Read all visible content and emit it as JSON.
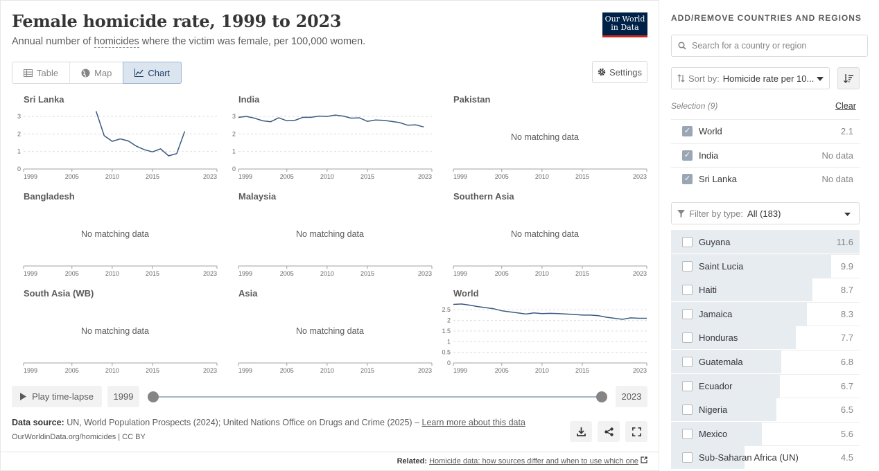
{
  "header": {
    "title": "Female homicide rate, 1999 to 2023",
    "subtitle_pre": "Annual number of ",
    "subtitle_link": "homicides",
    "subtitle_post": " where the victim was female, per 100,000 women.",
    "logo_line1": "Our World",
    "logo_line2": "in Data"
  },
  "tabs": [
    {
      "label": "Table",
      "icon": "table-icon"
    },
    {
      "label": "Map",
      "icon": "globe-icon"
    },
    {
      "label": "Chart",
      "icon": "line-chart-icon",
      "active": true
    }
  ],
  "settings_label": "Settings",
  "no_data_text": "No matching data",
  "chart_data": {
    "type": "line",
    "facets": [
      {
        "name": "Sri Lanka",
        "has_data": true,
        "yticks": [
          0,
          1,
          2,
          3
        ],
        "ylim": [
          0,
          3.4
        ],
        "points": [
          [
            2008,
            3.3
          ],
          [
            2009,
            1.9
          ],
          [
            2010,
            1.58
          ],
          [
            2011,
            1.72
          ],
          [
            2012,
            1.6
          ],
          [
            2013,
            1.3
          ],
          [
            2014,
            1.1
          ],
          [
            2015,
            0.98
          ],
          [
            2016,
            1.15
          ],
          [
            2017,
            0.75
          ],
          [
            2018,
            0.88
          ],
          [
            2019,
            2.15
          ]
        ]
      },
      {
        "name": "India",
        "has_data": true,
        "yticks": [
          0,
          1,
          2,
          3
        ],
        "ylim": [
          0,
          3.4
        ],
        "points": [
          [
            1999,
            2.95
          ],
          [
            2000,
            3.0
          ],
          [
            2001,
            2.9
          ],
          [
            2002,
            2.75
          ],
          [
            2003,
            2.7
          ],
          [
            2004,
            2.92
          ],
          [
            2005,
            2.75
          ],
          [
            2006,
            2.78
          ],
          [
            2007,
            2.95
          ],
          [
            2008,
            2.95
          ],
          [
            2009,
            3.02
          ],
          [
            2010,
            3.0
          ],
          [
            2011,
            3.08
          ],
          [
            2012,
            3.02
          ],
          [
            2013,
            2.9
          ],
          [
            2014,
            2.92
          ],
          [
            2015,
            2.72
          ],
          [
            2016,
            2.8
          ],
          [
            2017,
            2.78
          ],
          [
            2018,
            2.72
          ],
          [
            2019,
            2.65
          ],
          [
            2020,
            2.5
          ],
          [
            2021,
            2.52
          ],
          [
            2022,
            2.4
          ]
        ]
      },
      {
        "name": "Pakistan",
        "has_data": false
      },
      {
        "name": "Bangladesh",
        "has_data": false
      },
      {
        "name": "Malaysia",
        "has_data": false
      },
      {
        "name": "Southern Asia",
        "has_data": false
      },
      {
        "name": "South Asia (WB)",
        "has_data": false
      },
      {
        "name": "Asia",
        "has_data": false
      },
      {
        "name": "World",
        "has_data": true,
        "yticks": [
          0,
          0.5,
          1,
          1.5,
          2,
          2.5
        ],
        "ylim": [
          0,
          2.8
        ],
        "points": [
          [
            1999,
            2.75
          ],
          [
            2000,
            2.77
          ],
          [
            2001,
            2.72
          ],
          [
            2002,
            2.65
          ],
          [
            2003,
            2.6
          ],
          [
            2004,
            2.55
          ],
          [
            2005,
            2.45
          ],
          [
            2006,
            2.4
          ],
          [
            2007,
            2.35
          ],
          [
            2008,
            2.3
          ],
          [
            2009,
            2.35
          ],
          [
            2010,
            2.32
          ],
          [
            2011,
            2.33
          ],
          [
            2012,
            2.32
          ],
          [
            2013,
            2.3
          ],
          [
            2014,
            2.28
          ],
          [
            2015,
            2.25
          ],
          [
            2016,
            2.25
          ],
          [
            2017,
            2.22
          ],
          [
            2018,
            2.15
          ],
          [
            2019,
            2.1
          ],
          [
            2020,
            2.05
          ],
          [
            2021,
            2.12
          ],
          [
            2022,
            2.1
          ],
          [
            2023,
            2.1
          ]
        ]
      }
    ],
    "x_ticks": [
      1999,
      2005,
      2010,
      2015,
      2023
    ],
    "xlim": [
      1999,
      2023
    ],
    "line_color": "#3a5a80"
  },
  "timeline": {
    "play_label": "Play time-lapse",
    "start_year": "1999",
    "end_year": "2023"
  },
  "footer": {
    "source_label": "Data source:",
    "source_text": " UN, World Population Prospects (2024); United Nations Office on Drugs and Crime (2025) – ",
    "learn_more": "Learn more about this data",
    "credit": "OurWorldinData.org/homicides | CC BY",
    "related_label": "Related:",
    "related_link": "Homicide data: how sources differ and when to use which one"
  },
  "sidebar": {
    "title": "ADD/REMOVE COUNTRIES AND REGIONS",
    "search_placeholder": "Search for a country or region",
    "sort_label": "Sort by:",
    "sort_value": "Homicide rate per 10...",
    "selection_label": "Selection (9)",
    "clear_label": "Clear",
    "selected": [
      {
        "name": "World",
        "value": "2.1"
      },
      {
        "name": "India",
        "value": "No data"
      },
      {
        "name": "Sri Lanka",
        "value": "No data"
      }
    ],
    "filter_label": "Filter by type:",
    "filter_value": "All (183)",
    "list": [
      {
        "name": "Guyana",
        "value": "11.6",
        "fraction": 1.0
      },
      {
        "name": "Saint Lucia",
        "value": "9.9",
        "fraction": 0.85
      },
      {
        "name": "Haiti",
        "value": "8.7",
        "fraction": 0.75
      },
      {
        "name": "Jamaica",
        "value": "8.3",
        "fraction": 0.72
      },
      {
        "name": "Honduras",
        "value": "7.7",
        "fraction": 0.66
      },
      {
        "name": "Guatemala",
        "value": "6.8",
        "fraction": 0.585
      },
      {
        "name": "Ecuador",
        "value": "6.7",
        "fraction": 0.578
      },
      {
        "name": "Nigeria",
        "value": "6.5",
        "fraction": 0.56
      },
      {
        "name": "Mexico",
        "value": "5.6",
        "fraction": 0.483
      },
      {
        "name": "Sub-Saharan Africa (UN)",
        "value": "4.5",
        "fraction": 0.388
      }
    ]
  }
}
